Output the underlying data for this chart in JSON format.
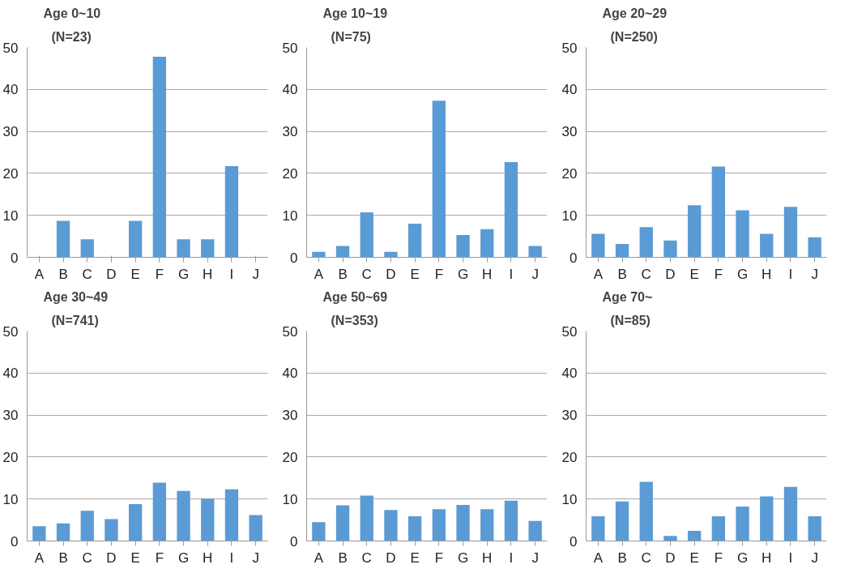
{
  "chart_data": [
    {
      "type": "bar",
      "title": "Age 0~10",
      "subtitle": "(N=23)",
      "categories": [
        "A",
        "B",
        "C",
        "D",
        "E",
        "F",
        "G",
        "H",
        "I",
        "J"
      ],
      "values": [
        0,
        8.7,
        4.3,
        0,
        8.7,
        47.8,
        4.3,
        4.3,
        21.7,
        0
      ],
      "color": "#5b9bd5",
      "ylim": [
        0,
        50
      ],
      "yticks": [
        0,
        10,
        20,
        30,
        40,
        50
      ],
      "grid": "y"
    },
    {
      "type": "bar",
      "title": "Age 10~19",
      "subtitle": "(N=75)",
      "categories": [
        "A",
        "B",
        "C",
        "D",
        "E",
        "F",
        "G",
        "H",
        "I",
        "J"
      ],
      "values": [
        1.3,
        2.7,
        10.7,
        1.3,
        8,
        37.3,
        5.3,
        6.7,
        22.7,
        2.7
      ],
      "color": "#5b9bd5",
      "ylim": [
        0,
        50
      ],
      "yticks": [
        0,
        10,
        20,
        30,
        40,
        50
      ],
      "grid": "y"
    },
    {
      "type": "bar",
      "title": "Age 20~29",
      "subtitle": "(N=250)",
      "categories": [
        "A",
        "B",
        "C",
        "D",
        "E",
        "F",
        "G",
        "H",
        "I",
        "J"
      ],
      "values": [
        5.6,
        3.2,
        7.2,
        4,
        12.4,
        21.6,
        11.2,
        5.6,
        12,
        4.8
      ],
      "color": "#5b9bd5",
      "ylim": [
        0,
        50
      ],
      "yticks": [
        0,
        10,
        20,
        30,
        40,
        50
      ],
      "grid": "y"
    },
    {
      "type": "bar",
      "title": "Age 30~49",
      "subtitle": "(N=741)",
      "categories": [
        "A",
        "B",
        "C",
        "D",
        "E",
        "F",
        "G",
        "H",
        "I",
        "J"
      ],
      "values": [
        3.5,
        4.2,
        7.2,
        5.2,
        8.8,
        13.9,
        11.9,
        10.1,
        12.3,
        6.2
      ],
      "color": "#5b9bd5",
      "ylim": [
        0,
        50
      ],
      "yticks": [
        0,
        10,
        20,
        30,
        40,
        50
      ],
      "grid": "y"
    },
    {
      "type": "bar",
      "title": "Age 50~69",
      "subtitle": "(N=353)",
      "categories": [
        "A",
        "B",
        "C",
        "D",
        "E",
        "F",
        "G",
        "H",
        "I",
        "J"
      ],
      "values": [
        4.5,
        8.5,
        10.8,
        7.4,
        5.9,
        7.6,
        8.6,
        7.6,
        9.6,
        4.8
      ],
      "color": "#5b9bd5",
      "ylim": [
        0,
        50
      ],
      "yticks": [
        0,
        10,
        20,
        30,
        40,
        50
      ],
      "grid": "y"
    },
    {
      "type": "bar",
      "title": "Age 70~",
      "subtitle": "(N=85)",
      "categories": [
        "A",
        "B",
        "C",
        "D",
        "E",
        "F",
        "G",
        "H",
        "I",
        "J"
      ],
      "values": [
        5.9,
        9.4,
        14.1,
        1.2,
        2.4,
        5.9,
        8.2,
        10.6,
        12.9,
        5.9
      ],
      "color": "#5b9bd5",
      "ylim": [
        0,
        50
      ],
      "yticks": [
        0,
        10,
        20,
        30,
        40,
        50
      ],
      "grid": "y"
    }
  ]
}
